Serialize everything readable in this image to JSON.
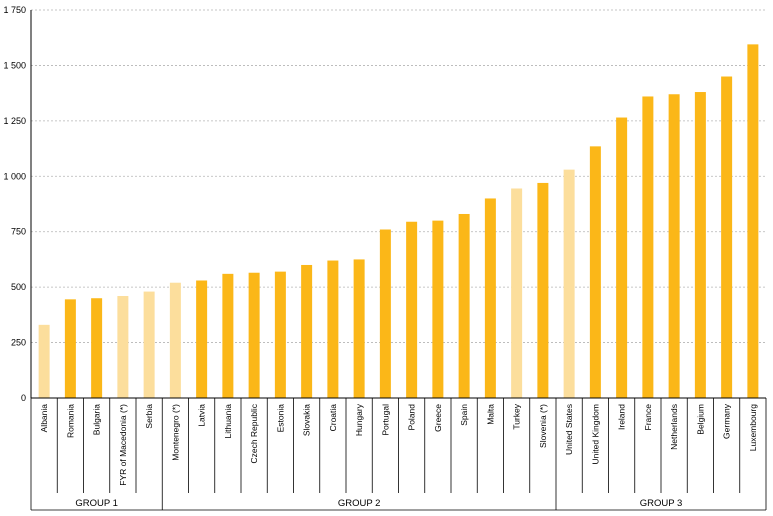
{
  "chart_data": {
    "type": "bar",
    "title": "",
    "xlabel": "",
    "ylabel": "",
    "ylim": [
      0,
      1750
    ],
    "yticks": [
      0,
      250,
      500,
      750,
      1000,
      1250,
      1500,
      1750
    ],
    "ytick_labels": [
      "0",
      "250",
      "500",
      "750",
      "1 000",
      "1 250",
      "1 500",
      "1 750"
    ],
    "grid": "horizontal dashed",
    "colors": {
      "dark": "#FBB718",
      "light": "#FCDE9C"
    },
    "categories": [
      "Albania",
      "Romania",
      "Bulgaria",
      "FYR of Macedonia (*)",
      "Serbia",
      "Montenegro (*)",
      "Latvia",
      "Lithuania",
      "Czech Republic",
      "Estonia",
      "Slovakia",
      "Croatia",
      "Hungary",
      "Portugal",
      "Poland",
      "Greece",
      "Spain",
      "Malta",
      "Turkey",
      "Slovenia (*)",
      "United States",
      "United Kingdom",
      "Ireland",
      "France",
      "Netherlands",
      "Belgium",
      "Germany",
      "Luxembourg"
    ],
    "values": [
      330,
      445,
      450,
      460,
      480,
      520,
      530,
      560,
      565,
      570,
      600,
      620,
      625,
      760,
      795,
      800,
      830,
      900,
      945,
      970,
      1030,
      1135,
      1265,
      1360,
      1370,
      1380,
      1450,
      1595
    ],
    "bar_shade": [
      "light",
      "dark",
      "dark",
      "light",
      "light",
      "light",
      "dark",
      "dark",
      "dark",
      "dark",
      "dark",
      "dark",
      "dark",
      "dark",
      "dark",
      "dark",
      "dark",
      "dark",
      "light",
      "dark",
      "light",
      "dark",
      "dark",
      "dark",
      "dark",
      "dark",
      "dark",
      "dark"
    ],
    "groups": [
      {
        "label": "GROUP 1",
        "start": 0,
        "end": 4
      },
      {
        "label": "GROUP 2",
        "start": 5,
        "end": 19
      },
      {
        "label": "GROUP 3",
        "start": 20,
        "end": 27
      }
    ]
  }
}
